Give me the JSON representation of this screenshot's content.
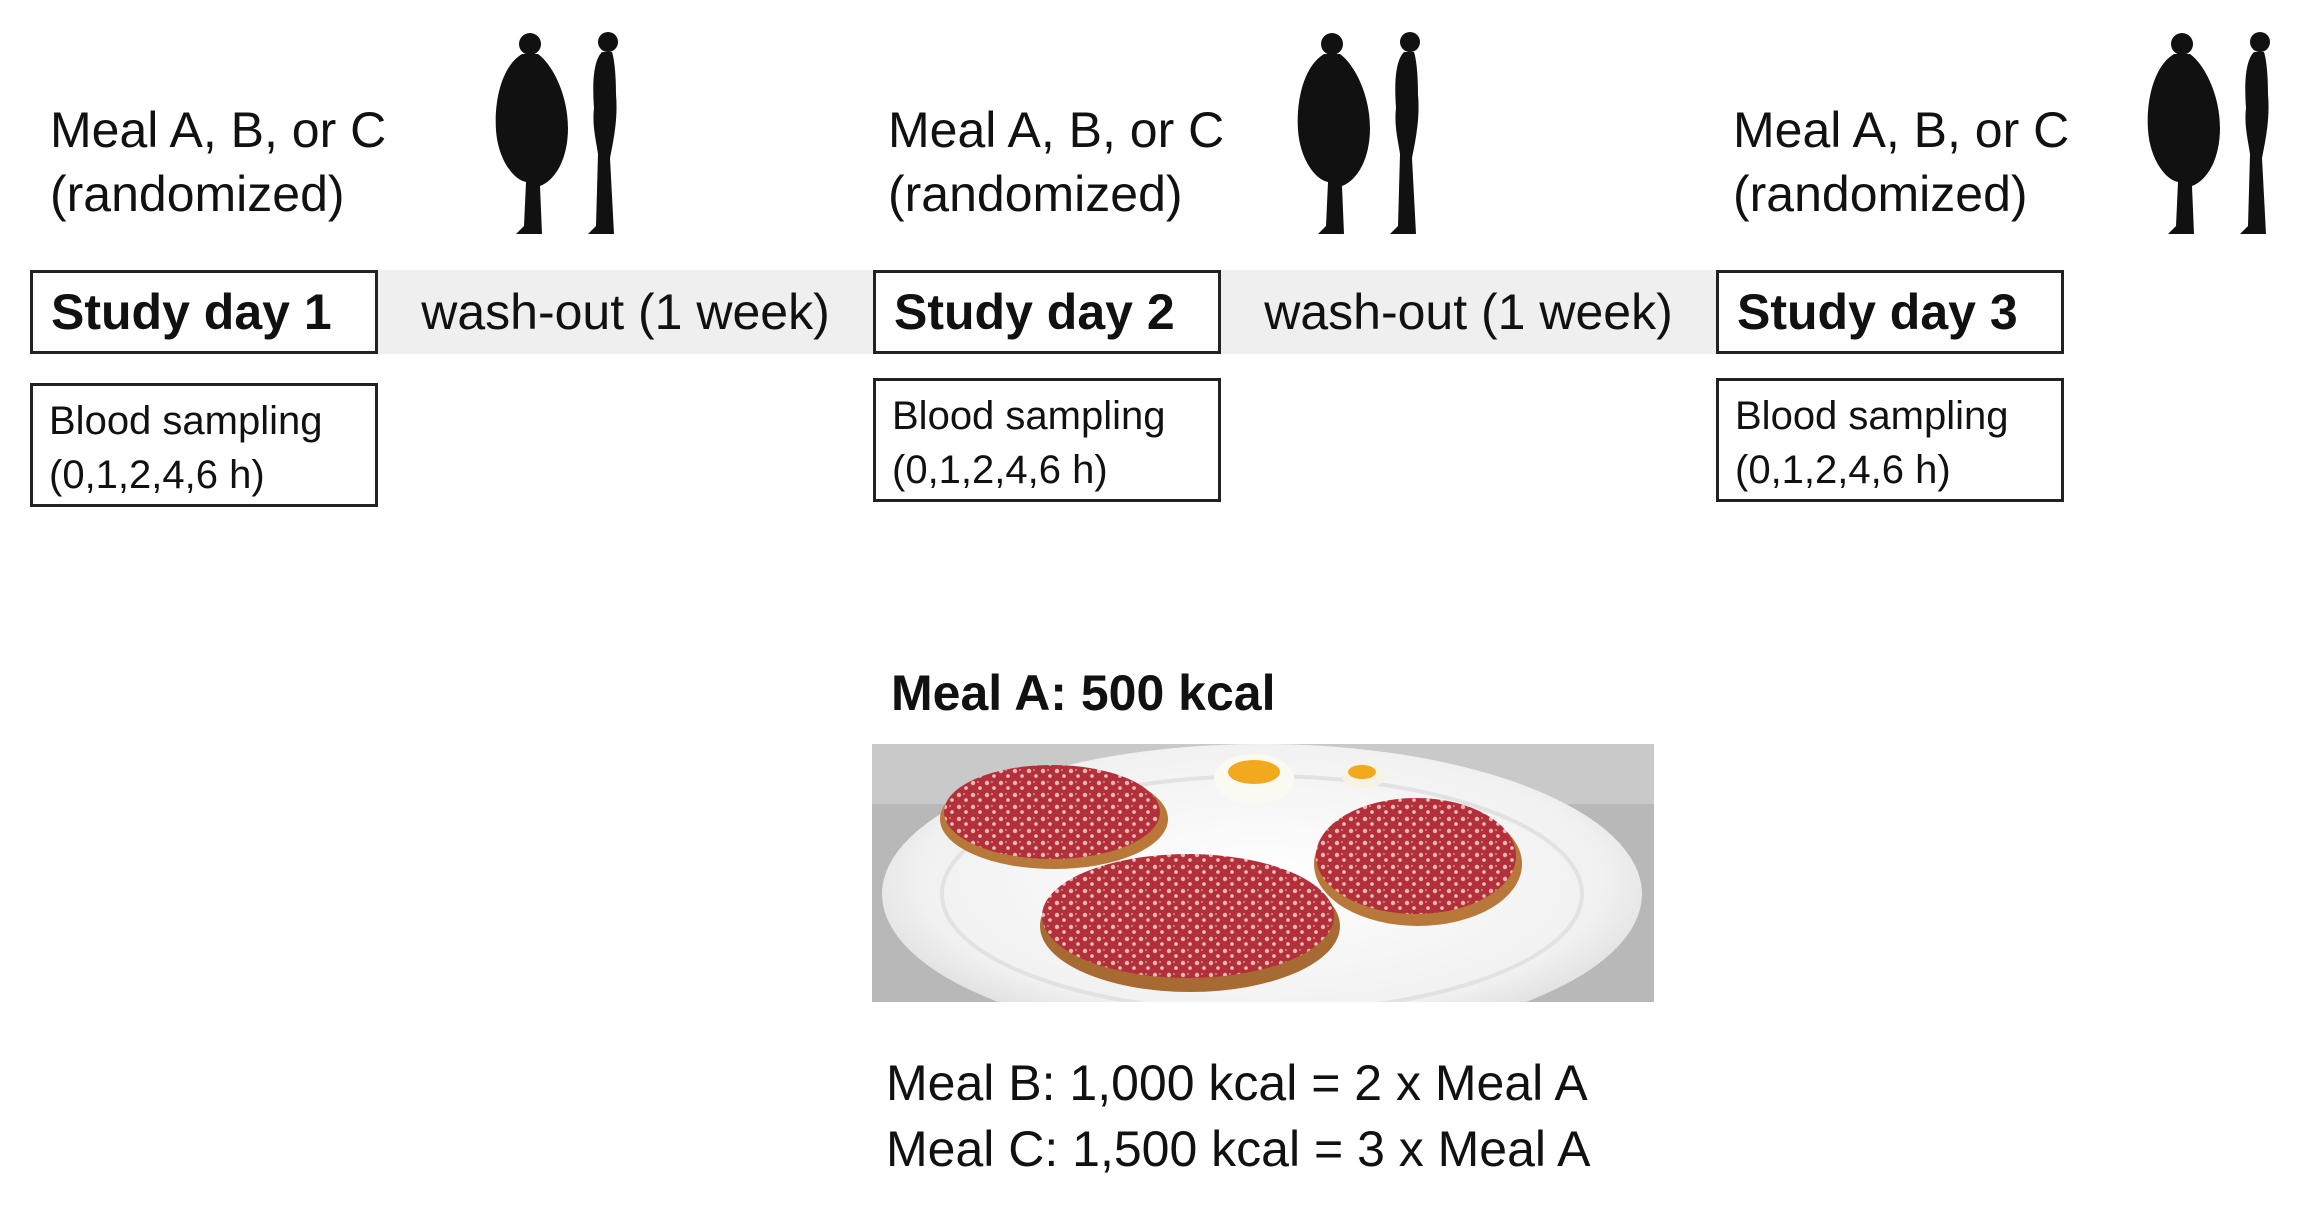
{
  "timeline": [
    {
      "meal_line1": "Meal A, B, or C",
      "meal_line2": "(randomized)",
      "day_label": "Study day 1",
      "blood_line1": "Blood sampling",
      "blood_line2": "(0,1,2,4,6 h)"
    },
    {
      "meal_line1": "Meal A, B, or C",
      "meal_line2": "(randomized)",
      "day_label": "Study day 2",
      "blood_line1": "Blood sampling",
      "blood_line2": "(0,1,2,4,6 h)"
    },
    {
      "meal_line1": "Meal A, B, or C",
      "meal_line2": "(randomized)",
      "day_label": "Study day 3",
      "blood_line1": "Blood sampling",
      "blood_line2": "(0,1,2,4,6 h)"
    }
  ],
  "washouts": [
    "wash-out (1 week)",
    "wash-out (1 week)"
  ],
  "meal_a_title": "Meal A: 500 kcal",
  "meal_b_note": "Meal B: 1,000 kcal = 2 x Meal A",
  "meal_c_note": "Meal C: 1,500 kcal = 3 x Meal A",
  "colors": {
    "silhouette": "#111111",
    "washout_bg": "#efefef",
    "border": "#222222",
    "salami": "#b5323a",
    "plate": "#f4f4f4",
    "egg_yolk": "#f2a91e"
  },
  "icons": [
    "obese-person-silhouette-icon",
    "slim-person-silhouette-icon",
    "salami-bread-meal-photo"
  ]
}
